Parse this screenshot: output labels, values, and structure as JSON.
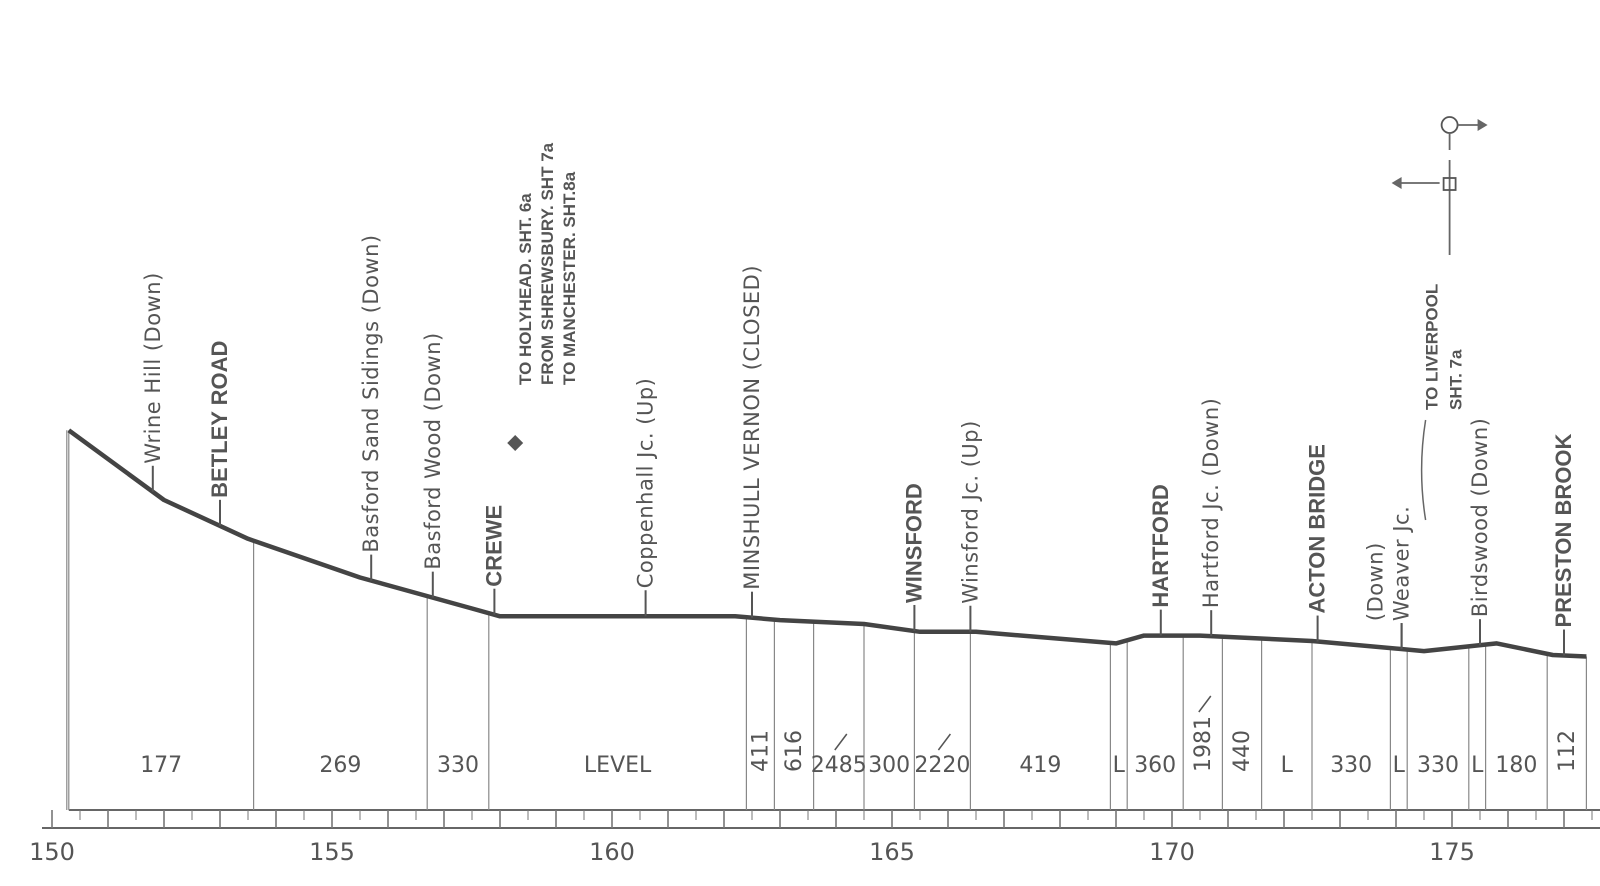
{
  "chart_data": {
    "type": "line",
    "title": "",
    "xlabel": "",
    "ylabel": "",
    "x_ticks": [
      "150",
      "155",
      "160",
      "165",
      "170",
      "175"
    ],
    "profile": [
      {
        "mile": 150.3,
        "height": 29
      },
      {
        "mile": 152.0,
        "height": 20
      },
      {
        "mile": 153.5,
        "height": 15
      },
      {
        "mile": 155.5,
        "height": 10
      },
      {
        "mile": 157.5,
        "height": 6
      },
      {
        "mile": 158.0,
        "height": 5
      },
      {
        "mile": 162.2,
        "height": 5
      },
      {
        "mile": 163.0,
        "height": 4.5
      },
      {
        "mile": 164.5,
        "height": 4
      },
      {
        "mile": 165.5,
        "height": 3
      },
      {
        "mile": 166.5,
        "height": 3
      },
      {
        "mile": 169.0,
        "height": 1.5
      },
      {
        "mile": 169.5,
        "height": 2.5
      },
      {
        "mile": 170.5,
        "height": 2.5
      },
      {
        "mile": 172.5,
        "height": 1.8
      },
      {
        "mile": 174.5,
        "height": 0.5
      },
      {
        "mile": 175.8,
        "height": 1.5
      },
      {
        "mile": 176.8,
        "height": 0
      },
      {
        "mile": 177.4,
        "height": -0.2
      }
    ],
    "gradient_sections": [
      {
        "label": "177",
        "start": 150.3,
        "end": 153.6
      },
      {
        "label": "269",
        "start": 153.6,
        "end": 156.7
      },
      {
        "label": "330",
        "start": 156.7,
        "end": 157.8
      },
      {
        "label": "LEVEL",
        "start": 157.8,
        "end": 162.4
      },
      {
        "label": "411",
        "start": 162.4,
        "end": 162.9
      },
      {
        "label": "616",
        "start": 162.9,
        "end": 163.6
      },
      {
        "label": "2485",
        "arrow": "up",
        "start": 163.6,
        "end": 164.5
      },
      {
        "label": "300",
        "start": 164.5,
        "end": 165.4
      },
      {
        "label": "2220",
        "arrow": "down",
        "start": 165.4,
        "end": 166.4
      },
      {
        "label": "419",
        "start": 166.4,
        "end": 168.9
      },
      {
        "label": "L",
        "start": 168.9,
        "end": 169.2
      },
      {
        "label": "360",
        "start": 169.2,
        "end": 170.2
      },
      {
        "label": "1981",
        "arrow": "down",
        "start": 170.2,
        "end": 170.9
      },
      {
        "label": "440",
        "start": 170.9,
        "end": 171.6
      },
      {
        "label": "L",
        "start": 171.6,
        "end": 172.5
      },
      {
        "label": "330",
        "start": 172.5,
        "end": 173.9
      },
      {
        "label": "L",
        "start": 173.9,
        "end": 174.2
      },
      {
        "label": "330",
        "start": 174.2,
        "end": 175.3
      },
      {
        "label": "L",
        "start": 175.3,
        "end": 175.6
      },
      {
        "label": "180",
        "start": 175.6,
        "end": 176.7
      },
      {
        "label": "112",
        "start": 176.7,
        "end": 177.4
      }
    ],
    "stations": [
      {
        "name": "Wrine Hill (Down)",
        "mile": 151.8,
        "style": "light"
      },
      {
        "name": "BETLEY ROAD",
        "mile": 153.0,
        "style": "bold"
      },
      {
        "name": "Basford Sand Sidings (Down)",
        "mile": 155.7,
        "style": "light"
      },
      {
        "name": "Basford Wood (Down)",
        "mile": 156.8,
        "style": "light"
      },
      {
        "name": "CREWE",
        "mile": 157.9,
        "style": "bold"
      },
      {
        "name": "Coppenhall Jc. (Up)",
        "mile": 160.6,
        "style": "light"
      },
      {
        "name": "MINSHULL VERNON (CLOSED)",
        "mile": 162.5,
        "style": "light"
      },
      {
        "name": "WINSFORD",
        "mile": 165.4,
        "style": "bold"
      },
      {
        "name": "Winsford Jc. (Up)",
        "mile": 166.4,
        "style": "light"
      },
      {
        "name": "HARTFORD",
        "mile": 169.8,
        "style": "bold"
      },
      {
        "name": "Hartford Jc. (Down)",
        "mile": 170.7,
        "style": "light"
      },
      {
        "name": "ACTON BRIDGE",
        "mile": 172.6,
        "style": "bold"
      },
      {
        "name": "Weaver Jc.",
        "mile": 174.1,
        "style": "light"
      },
      {
        "name": "(Down)",
        "mile": 174.1,
        "style": "light"
      },
      {
        "name": "Birdswood (Down)",
        "mile": 175.5,
        "style": "light"
      },
      {
        "name": "PRESTON BROOK",
        "mile": 177.0,
        "style": "bold"
      }
    ],
    "branch_notes": {
      "crewe": [
        "TO HOLYHEAD. SHT. 6a",
        "FROM SHREWSBURY. SHT 7a",
        "TO MANCHESTER. SHT.8a"
      ],
      "weaver": [
        "TO LIVERPOOL",
        "SHT. 7a"
      ]
    }
  }
}
